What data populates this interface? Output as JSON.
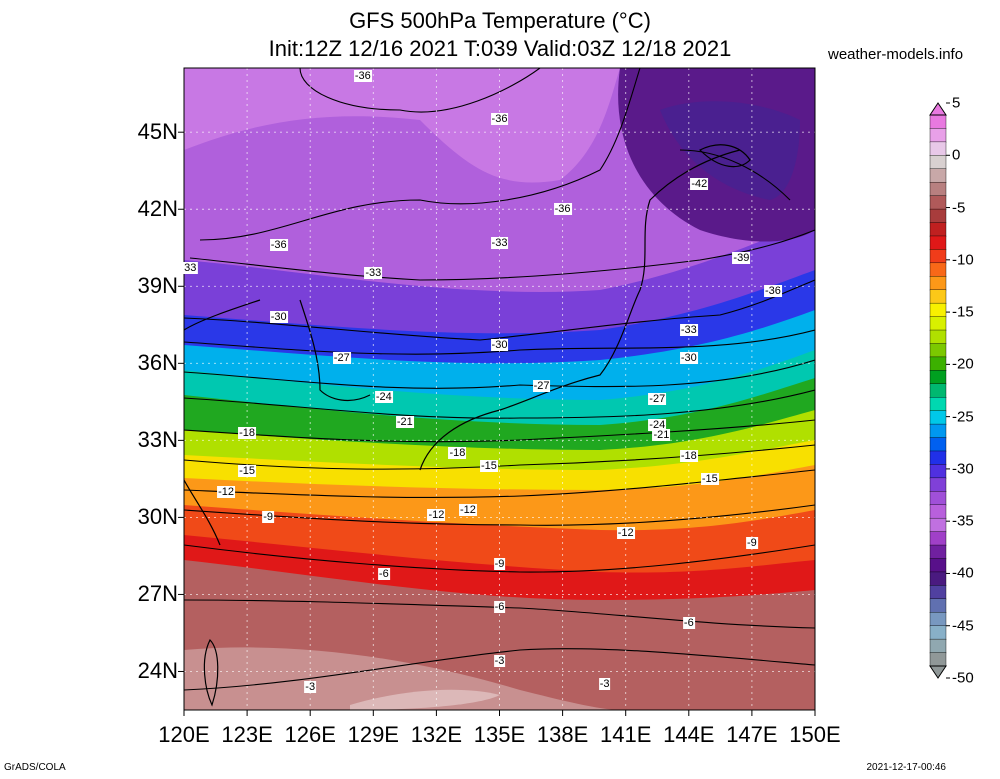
{
  "title": {
    "line1": "GFS 500hPa Temperature (°C)",
    "line2": "Init:12Z 12/16 2021 T:039 Valid:03Z 12/18 2021"
  },
  "site": "weather-models.info",
  "footer": {
    "left": "GrADS/COLA",
    "right": "2021-12-17-00:46"
  },
  "axes": {
    "lat_labels": [
      "45N",
      "42N",
      "39N",
      "36N",
      "33N",
      "30N",
      "27N",
      "24N"
    ],
    "lat_values": [
      45,
      42,
      39,
      36,
      33,
      30,
      27,
      24
    ],
    "lon_labels": [
      "120E",
      "123E",
      "126E",
      "129E",
      "132E",
      "135E",
      "138E",
      "141E",
      "144E",
      "147E",
      "150E"
    ],
    "lon_values": [
      120,
      123,
      126,
      129,
      132,
      135,
      138,
      141,
      144,
      147,
      150
    ],
    "lon_range": [
      120,
      150
    ],
    "lat_range": [
      22.5,
      47.5
    ]
  },
  "colorbar": {
    "labels": [
      "5",
      "0",
      "-5",
      "-10",
      "-15",
      "-20",
      "-25",
      "-30",
      "-35",
      "-40",
      "-45",
      "-50"
    ],
    "values": [
      5,
      0,
      -5,
      -10,
      -15,
      -20,
      -25,
      -30,
      -35,
      -40,
      -45,
      -50
    ],
    "colors": [
      "#e879e0",
      "#e8a0e8",
      "#e8c8e8",
      "#d8d0d0",
      "#c8a8a8",
      "#b88080",
      "#b05a5a",
      "#a83c3c",
      "#c02020",
      "#e01818",
      "#f03c1a",
      "#f86818",
      "#fc9818",
      "#fcc818",
      "#f8f000",
      "#d8f000",
      "#b0e000",
      "#7cc800",
      "#3cb000",
      "#00a020",
      "#00b870",
      "#00d8b0",
      "#00c8e8",
      "#0098f0",
      "#0060f0",
      "#2030e8",
      "#5030e0",
      "#8040d8",
      "#a050d8",
      "#b860dc",
      "#c070e0",
      "#a040c8",
      "#7020a0",
      "#58108a",
      "#4a1a80",
      "#5040a0",
      "#6070b0",
      "#7898c0",
      "#88b0c8",
      "#90a8b0",
      "#909898"
    ]
  },
  "contour_labels": [
    {
      "text": "-36",
      "lon": 128.5,
      "lat": 47.2
    },
    {
      "text": "-36",
      "lon": 135.0,
      "lat": 45.5
    },
    {
      "text": "-36",
      "lon": 138.0,
      "lat": 42.0
    },
    {
      "text": "-42",
      "lon": 144.5,
      "lat": 43.0
    },
    {
      "text": "-36",
      "lon": 124.5,
      "lat": 40.6
    },
    {
      "text": "33",
      "lon": 120.3,
      "lat": 39.7
    },
    {
      "text": "-33",
      "lon": 129.0,
      "lat": 39.5
    },
    {
      "text": "-33",
      "lon": 135.0,
      "lat": 40.7
    },
    {
      "text": "-39",
      "lon": 146.5,
      "lat": 40.1
    },
    {
      "text": "-36",
      "lon": 148.0,
      "lat": 38.8
    },
    {
      "text": "-30",
      "lon": 124.5,
      "lat": 37.8
    },
    {
      "text": "-33",
      "lon": 144.0,
      "lat": 37.3
    },
    {
      "text": "-30",
      "lon": 135.0,
      "lat": 36.7
    },
    {
      "text": "-30",
      "lon": 144.0,
      "lat": 36.2
    },
    {
      "text": "-27",
      "lon": 127.5,
      "lat": 36.2
    },
    {
      "text": "-27",
      "lon": 137.0,
      "lat": 35.1
    },
    {
      "text": "-27",
      "lon": 142.5,
      "lat": 34.6
    },
    {
      "text": "-24",
      "lon": 129.5,
      "lat": 34.7
    },
    {
      "text": "-21",
      "lon": 130.5,
      "lat": 33.7
    },
    {
      "text": "-24",
      "lon": 142.5,
      "lat": 33.6
    },
    {
      "text": "-21",
      "lon": 142.7,
      "lat": 33.2
    },
    {
      "text": "-18",
      "lon": 123.0,
      "lat": 33.3
    },
    {
      "text": "-18",
      "lon": 133.0,
      "lat": 32.5
    },
    {
      "text": "-18",
      "lon": 144.0,
      "lat": 32.4
    },
    {
      "text": "-15",
      "lon": 123.0,
      "lat": 31.8
    },
    {
      "text": "-15",
      "lon": 134.5,
      "lat": 32.0
    },
    {
      "text": "-15",
      "lon": 145.0,
      "lat": 31.5
    },
    {
      "text": "-12",
      "lon": 122.0,
      "lat": 31.0
    },
    {
      "text": "-12",
      "lon": 132.0,
      "lat": 30.1
    },
    {
      "text": "-12",
      "lon": 133.5,
      "lat": 30.3
    },
    {
      "text": "-12",
      "lon": 141.0,
      "lat": 29.4
    },
    {
      "text": "-9",
      "lon": 124.0,
      "lat": 30.0
    },
    {
      "text": "-9",
      "lon": 135.0,
      "lat": 28.2
    },
    {
      "text": "-9",
      "lon": 147.0,
      "lat": 29.0
    },
    {
      "text": "-6",
      "lon": 129.5,
      "lat": 27.8
    },
    {
      "text": "-6",
      "lon": 135.0,
      "lat": 26.5
    },
    {
      "text": "-6",
      "lon": 144.0,
      "lat": 25.9
    },
    {
      "text": "-3",
      "lon": 135.0,
      "lat": 24.4
    },
    {
      "text": "-3",
      "lon": 126.0,
      "lat": 23.4
    },
    {
      "text": "-3",
      "lon": 140.0,
      "lat": 23.5
    }
  ]
}
